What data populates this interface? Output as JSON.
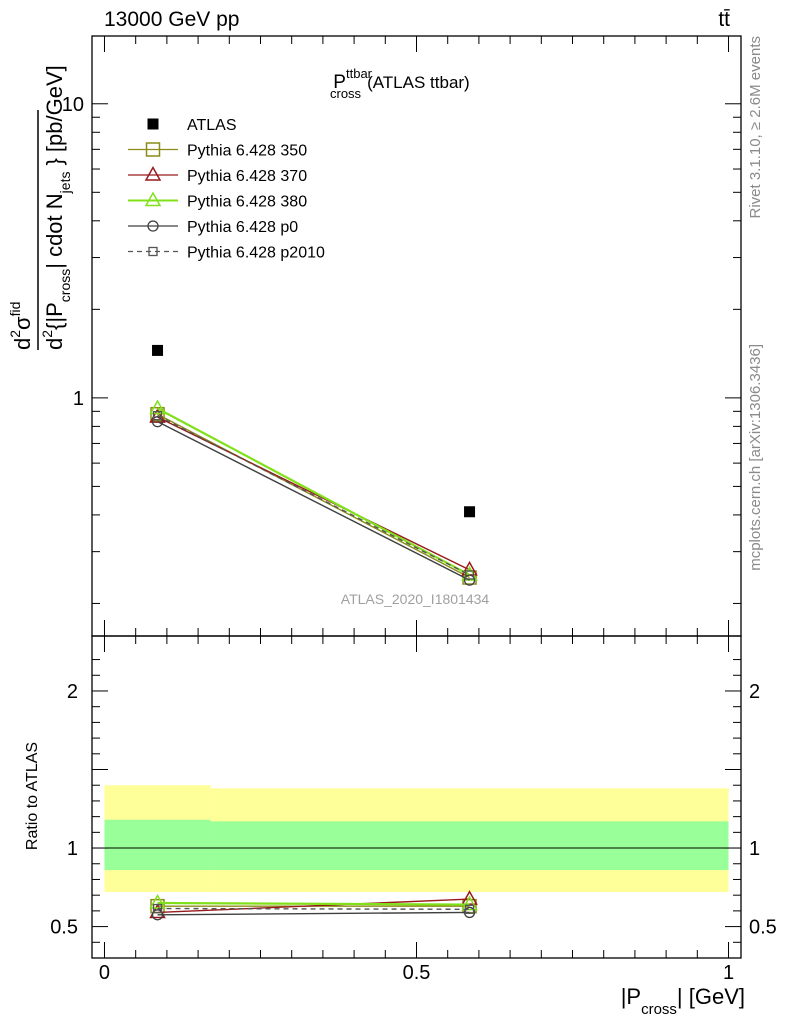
{
  "header": {
    "left": "13000 GeV pp",
    "right": "tt̄"
  },
  "watermark": {
    "top": "Rivet 3.1.10, ≥ 2.6M events",
    "bottom": "mcplots.cern.ch [arXiv:1306.3436]"
  },
  "analysis_id": "ATLAS_2020_I1801434",
  "chart_data": {
    "type": "line",
    "title": "P_cross^ttbar (ATLAS ttbar)",
    "title_parts": {
      "main": "P",
      "sup": "ttbar",
      "sub": "cross",
      "suffix": "(ATLAS ttbar)"
    },
    "ylabel": "d²σ^fid / d²{|P_cross| cdot N_jets} [pb/GeV]",
    "ylabel_parts": {
      "num_d": "d",
      "num_sup": "2",
      "num_sigma": "σ",
      "num_fid": "fid",
      "den_d": "d",
      "den_sup": "2",
      "den_brace": "{|P",
      "den_cross": "cross",
      "den_mid": "| cdot N",
      "den_jets": "jets",
      "den_unit": "} [pb/GeV]"
    },
    "ratio_ylabel": "Ratio to ATLAS",
    "xlabel": "|P_cross| [GeV]",
    "xlabel_parts": {
      "pre": "|P",
      "sub": "cross",
      "post": "| [GeV]"
    },
    "xlim": [
      -0.02,
      1.02
    ],
    "ylim": [
      0.155,
      17
    ],
    "yscale": "log",
    "ratio_ylim": [
      0.3,
      2.35
    ],
    "x_ticks": [
      "0",
      "0.5",
      "1"
    ],
    "y_ticks": [
      "1",
      "10"
    ],
    "ratio_ticks": [
      "0.5",
      "1",
      "2"
    ],
    "bins": [
      [
        0,
        0.17
      ],
      [
        0.17,
        1.0
      ]
    ],
    "x": [
      0.085,
      0.585
    ],
    "legend_position": "top-left",
    "series": [
      {
        "name": "ATLAS",
        "values": [
          1.45,
          0.41
        ],
        "color": "#000000",
        "marker": "filled-square",
        "dash": "none"
      },
      {
        "name": "Pythia 6.428 350",
        "values": [
          0.88,
          0.245
        ],
        "color": "#8c8c1a",
        "marker": "open-square",
        "dash": "solid"
      },
      {
        "name": "Pythia 6.428 370",
        "values": [
          0.86,
          0.26
        ],
        "color": "#991a1a",
        "marker": "open-triangle",
        "dash": "solid"
      },
      {
        "name": "Pythia 6.428 380",
        "values": [
          0.92,
          0.25
        ],
        "color": "#80e01a",
        "marker": "open-triangle",
        "dash": "solid"
      },
      {
        "name": "Pythia 6.428 p0",
        "values": [
          0.83,
          0.24
        ],
        "color": "#404040",
        "marker": "open-circle",
        "dash": "solid"
      },
      {
        "name": "Pythia 6.428 p2010",
        "values": [
          0.87,
          0.25
        ],
        "color": "#555555",
        "marker": "open-square-small",
        "dash": "dashed"
      }
    ],
    "ratio_series": [
      {
        "name": "Pythia 6.428 350",
        "values": [
          0.63,
          0.63
        ]
      },
      {
        "name": "Pythia 6.428 370",
        "values": [
          0.59,
          0.675
        ]
      },
      {
        "name": "Pythia 6.428 380",
        "values": [
          0.65,
          0.64
        ]
      },
      {
        "name": "Pythia 6.428 p0",
        "values": [
          0.575,
          0.59
        ]
      },
      {
        "name": "Pythia 6.428 p2010",
        "values": [
          0.615,
          0.61
        ]
      }
    ],
    "ratio_bands": {
      "stat_syst_outer": [
        [
          0.72,
          1.4
        ],
        [
          0.72,
          1.38
        ]
      ],
      "stat_inner": [
        [
          0.86,
          1.18
        ],
        [
          0.86,
          1.17
        ]
      ],
      "outer_color": "#ffff99",
      "inner_color": "#99ff99"
    }
  }
}
